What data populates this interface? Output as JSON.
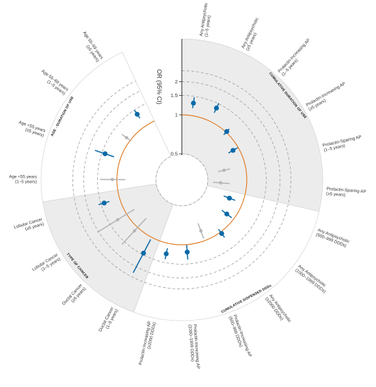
{
  "chart_data": {
    "type": "radial-forest",
    "ylabel": "OR (95% CI)",
    "scale": "log",
    "ylim": [
      0.5,
      3.0
    ],
    "reference_value": 1,
    "ticks": [
      "0.5",
      "1",
      "1.5",
      "2"
    ],
    "tick_values": [
      0.5,
      1,
      1.5,
      2
    ],
    "colors": {
      "significant": "#0b6aa8",
      "nonsignificant": "#b5b5b5",
      "reference": "#e07b23",
      "band": "#ececec"
    },
    "sections": [
      {
        "label": "CUMULATIVE DURATION OF USE",
        "shaded": true,
        "items": [
          {
            "label": "Any Antipsychotic\n(1–5 years)",
            "or": 1.3,
            "lo": 1.17,
            "hi": 1.47,
            "significant": true
          },
          {
            "label": "Any Antipsychotic\n(≥5 years)",
            "or": 1.36,
            "lo": 1.22,
            "hi": 1.52,
            "significant": true
          },
          {
            "label": "Prolactin-Increasing AP\n(1–5 years)",
            "or": 1.02,
            "lo": 0.94,
            "hi": 1.1,
            "significant": true
          },
          {
            "label": "Prolactin-Increasing AP\n(≥5 years)",
            "or": 0.9,
            "lo": 0.82,
            "hi": 0.99,
            "significant": true
          },
          {
            "label": "Prolactin-Sparing AP\n(1–5 years)",
            "or": 0.68,
            "lo": 0.61,
            "hi": 0.76,
            "significant": false
          },
          {
            "label": "Prolactin-Sparing AP\n(≥5 years)",
            "or": 0.63,
            "lo": 0.55,
            "hi": 0.74,
            "significant": false
          }
        ]
      },
      {
        "label": "CUMULATIVE DISPENSED DDDs",
        "shaded": false,
        "items": [
          {
            "label": "Any Antipsychotic\n(500–999 DDDs)",
            "or": 0.78,
            "lo": 0.7,
            "hi": 0.87,
            "significant": true
          },
          {
            "label": "Any Antipsychotic\n(1000–1999 DDDs)",
            "or": 0.86,
            "lo": 0.77,
            "hi": 0.96,
            "significant": true
          },
          {
            "label": "Any Antipsychotic\n(≥2000 DDDs)",
            "or": 1.04,
            "lo": 0.94,
            "hi": 1.15,
            "significant": true
          },
          {
            "label": "Prolactin-Increasing AP\n(500–999 DDDs)",
            "or": 0.83,
            "lo": 0.72,
            "hi": 0.96,
            "significant": false
          },
          {
            "label": "Prolactin-Increasing AP\n(1000–1999 DDDs)",
            "or": 1.17,
            "lo": 1.01,
            "hi": 1.37,
            "significant": true
          },
          {
            "label": "Prolactin-Increasing AP\n(≥2000 DDDs)",
            "or": 1.25,
            "lo": 1.11,
            "hi": 1.4,
            "significant": true
          }
        ]
      },
      {
        "label": "TYPE OF CANCER",
        "shaded": true,
        "items": [
          {
            "label": "Ductal Cancer\n(1–5 years)",
            "or": 1.45,
            "lo": 1.05,
            "hi": 2.3,
            "significant": true
          },
          {
            "label": "Ductal Cancer\n(≥5 years)",
            "or": 1.1,
            "lo": 0.8,
            "hi": 1.62,
            "significant": false
          },
          {
            "label": "Lobular Cancer\n(1–5 years)",
            "or": 1.25,
            "lo": 0.85,
            "hi": 2.05,
            "significant": false
          },
          {
            "label": "Lobular Cancer\n(≥5 years)",
            "or": 1.4,
            "lo": 1.25,
            "hi": 1.58,
            "significant": true
          }
        ]
      },
      {
        "label": "AGE - DURATION OF USE",
        "shaded": false,
        "items": [
          {
            "label": "Age <55 years\n(1–5 years)",
            "or": 1.1,
            "lo": 0.86,
            "hi": 1.42,
            "significant": false
          },
          {
            "label": "Age <55 years\n(≥5 years)",
            "or": 1.4,
            "lo": 1.15,
            "hi": 1.75,
            "significant": true
          },
          {
            "label": "Age 55–69 years\n(1–5 years)",
            "or": 1.1,
            "lo": 0.98,
            "hi": 1.24,
            "significant": false
          },
          {
            "label": "Age 55–69 years\n(≥5 years)",
            "or": 1.35,
            "lo": 1.22,
            "hi": 1.5,
            "significant": true
          }
        ]
      }
    ]
  }
}
